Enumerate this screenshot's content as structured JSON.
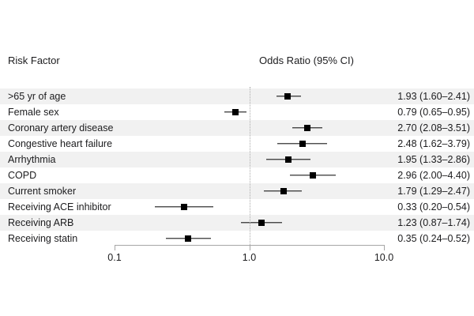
{
  "header": {
    "risk_factor": "Risk Factor",
    "odds_ratio": "Odds Ratio (95% CI)"
  },
  "chart_data": {
    "type": "scatter",
    "variant": "forest-plot",
    "xscale": "log",
    "xlim": [
      0.1,
      10
    ],
    "xticks": [
      {
        "value": 0.1,
        "label": "0.1"
      },
      {
        "value": 1.0,
        "label": "1.0"
      },
      {
        "value": 10.0,
        "label": "10.0"
      }
    ],
    "reference_line": 1.0,
    "rows": [
      {
        "label": ">65 yr of age",
        "or": 1.93,
        "ci_low": 1.6,
        "ci_high": 2.41,
        "display": "1.93 (1.60–2.41)"
      },
      {
        "label": "Female sex",
        "or": 0.79,
        "ci_low": 0.65,
        "ci_high": 0.95,
        "display": "0.79 (0.65–0.95)"
      },
      {
        "label": "Coronary artery disease",
        "or": 2.7,
        "ci_low": 2.08,
        "ci_high": 3.51,
        "display": "2.70 (2.08–3.51)"
      },
      {
        "label": "Congestive heart failure",
        "or": 2.48,
        "ci_low": 1.62,
        "ci_high": 3.79,
        "display": "2.48 (1.62–3.79)"
      },
      {
        "label": "Arrhythmia",
        "or": 1.95,
        "ci_low": 1.33,
        "ci_high": 2.86,
        "display": "1.95 (1.33–2.86)"
      },
      {
        "label": "COPD",
        "or": 2.96,
        "ci_low": 2.0,
        "ci_high": 4.4,
        "display": "2.96 (2.00–4.40)"
      },
      {
        "label": "Current smoker",
        "or": 1.79,
        "ci_low": 1.29,
        "ci_high": 2.47,
        "display": "1.79 (1.29–2.47)"
      },
      {
        "label": "Receiving ACE inhibitor",
        "or": 0.33,
        "ci_low": 0.2,
        "ci_high": 0.54,
        "display": "0.33 (0.20–0.54)"
      },
      {
        "label": "Receiving ARB",
        "or": 1.23,
        "ci_low": 0.87,
        "ci_high": 1.74,
        "display": "1.23 (0.87–1.74)"
      },
      {
        "label": "Receiving statin",
        "or": 0.35,
        "ci_low": 0.24,
        "ci_high": 0.52,
        "display": "0.35 (0.24–0.52)"
      }
    ],
    "colors": {
      "marker": "#000000",
      "ci_line": "#000000",
      "band": "#f1f1f1",
      "axis": "#a6a6a6",
      "reference_line": "#aaaaaa",
      "text": "#1c1c1e"
    }
  }
}
